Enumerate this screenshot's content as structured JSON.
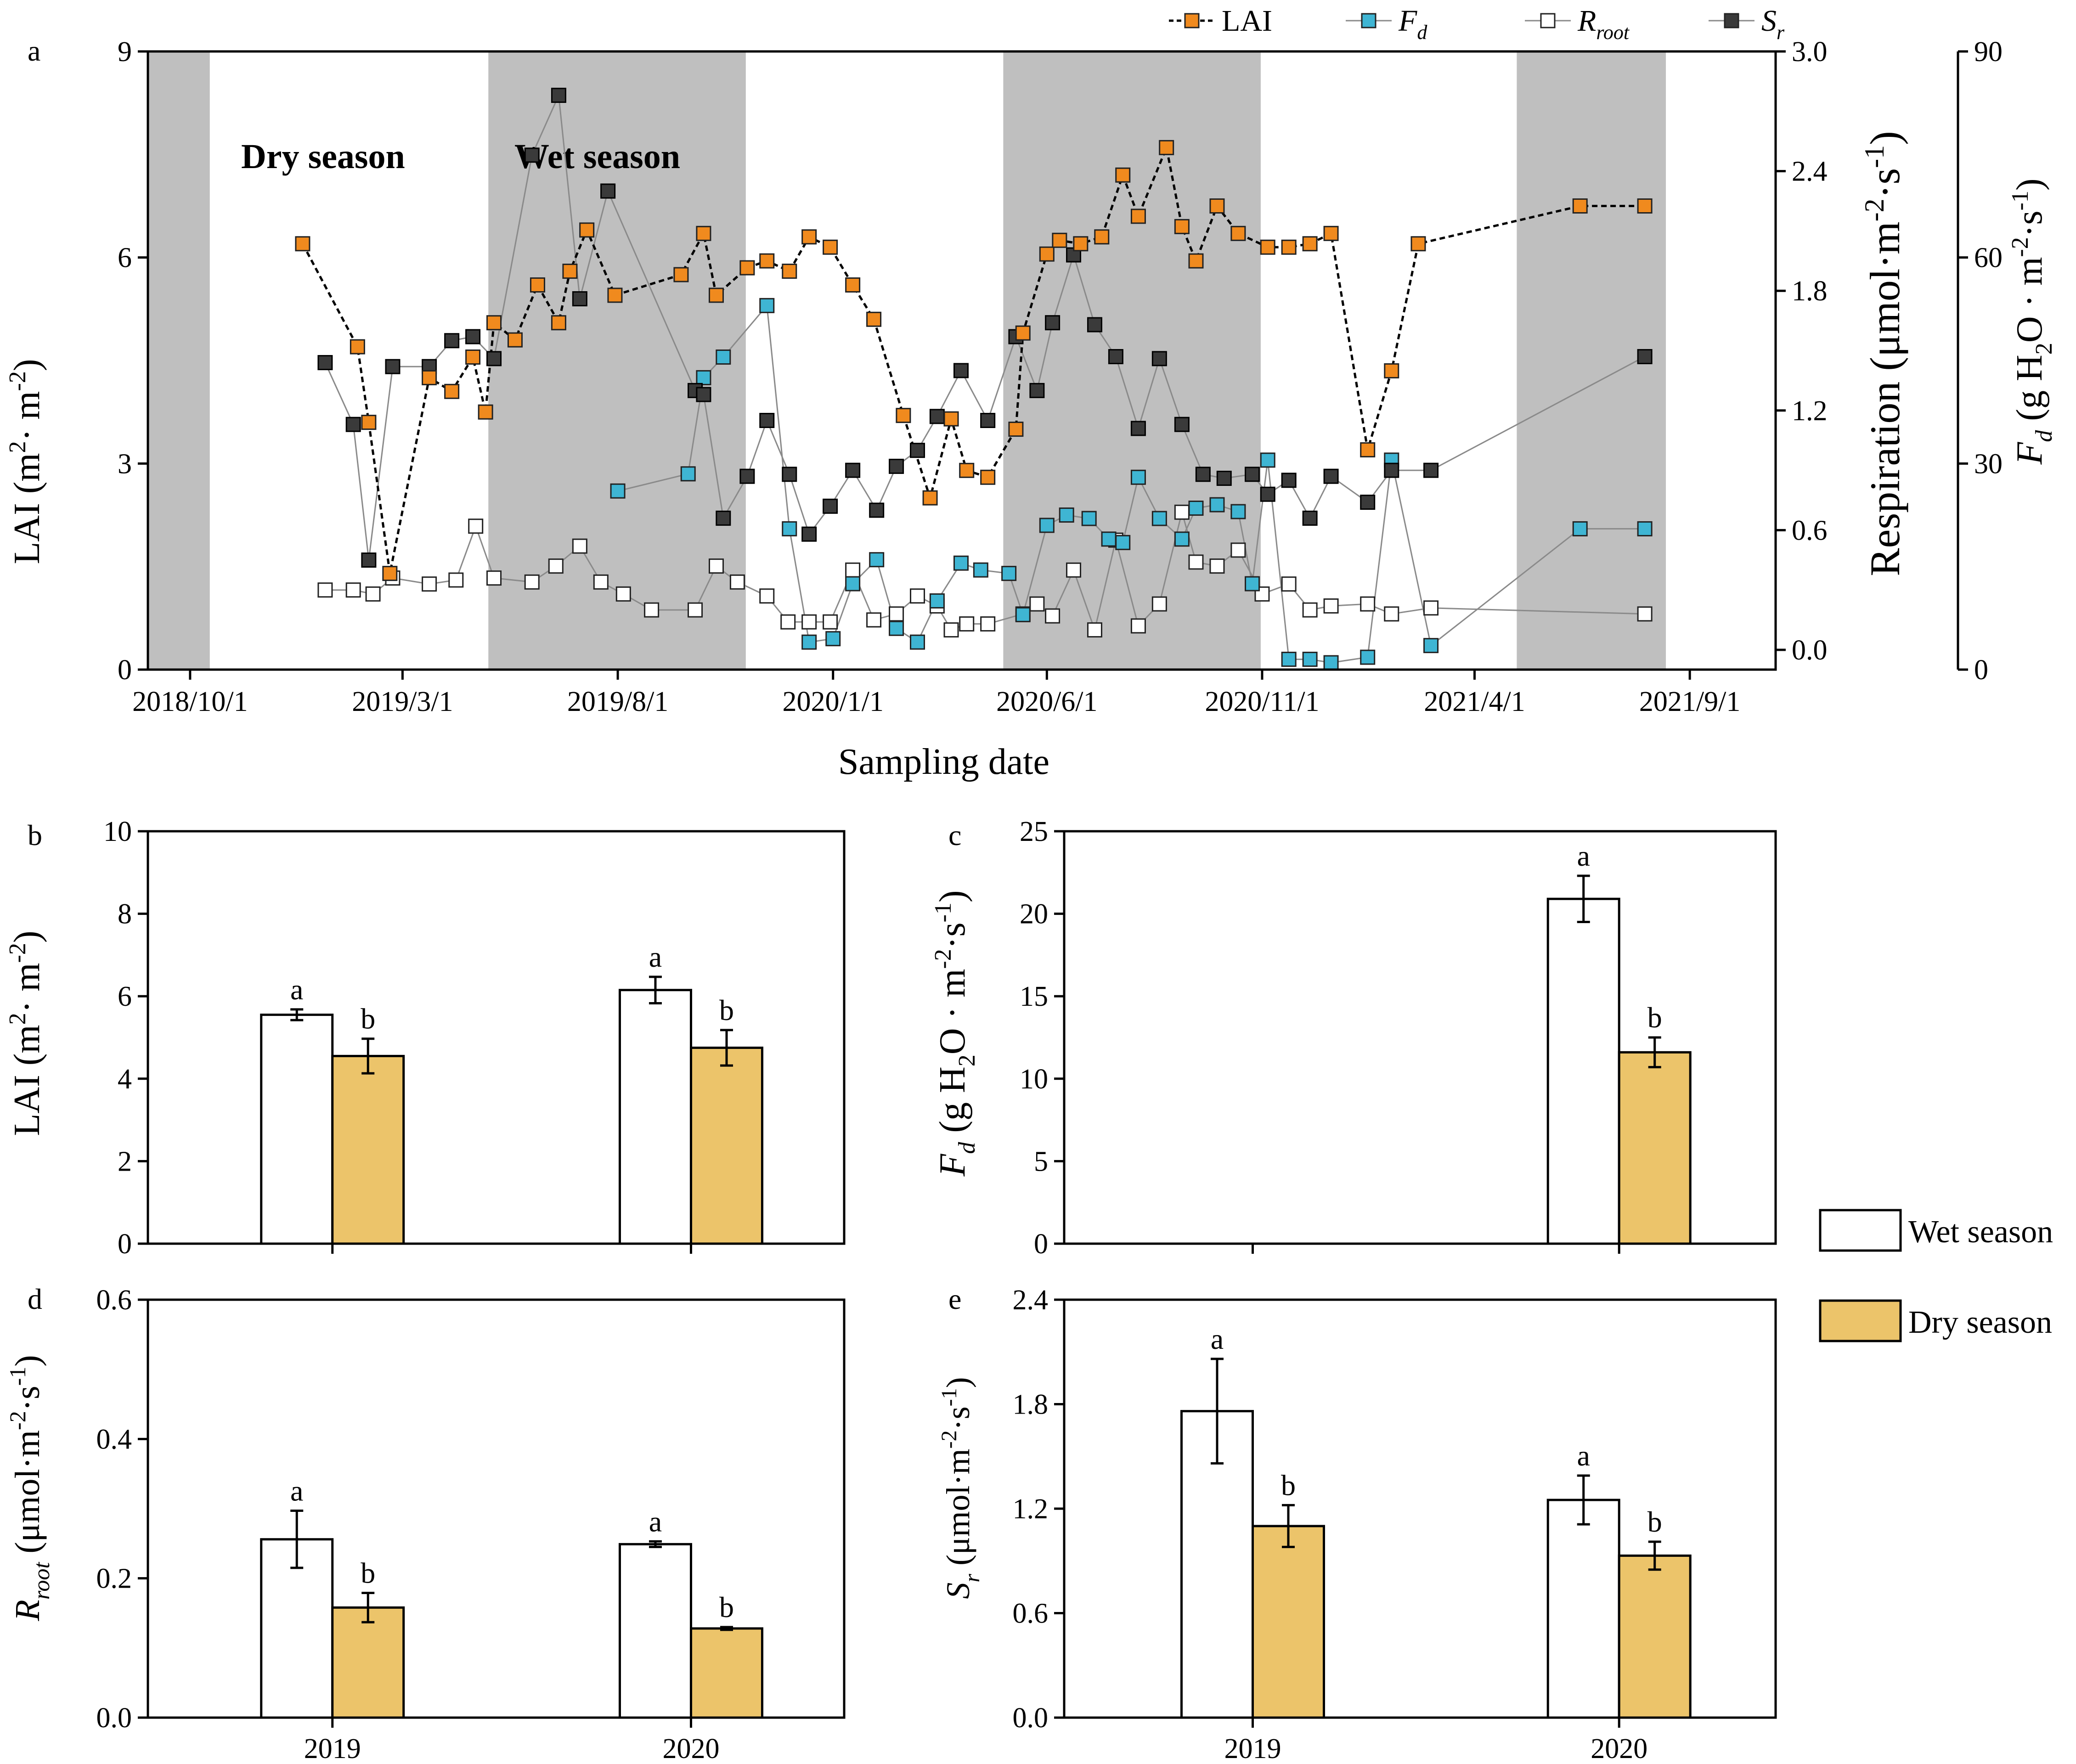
{
  "figure": {
    "panel_labels": [
      "a",
      "b",
      "c",
      "d",
      "e"
    ]
  },
  "colors": {
    "lai": "#f08a1e",
    "fd": "#3fb5d3",
    "rroot": "#ffffff",
    "sr": "#3a3a3a",
    "wet_band": "#bfbfbf",
    "dry_bar": "#ecc46a",
    "wet_bar": "#ffffff"
  },
  "chart_data": [
    {
      "id": "a",
      "type": "line",
      "xlabel": "Sampling date",
      "x_tick_labels": [
        "2018/10/1",
        "2019/3/1",
        "2019/8/1",
        "2020/1/1",
        "2020/6/1",
        "2020/11/1",
        "2021/4/1",
        "2021/9/1"
      ],
      "x_tick_dates": [
        "2018-10-01",
        "2019-03-01",
        "2019-08-01",
        "2020-01-01",
        "2020-06-01",
        "2020-11-01",
        "2021-04-01",
        "2021-09-01"
      ],
      "xlim": [
        "2018-09-01",
        "2021-11-01"
      ],
      "season_bands": [
        {
          "season": "wet",
          "start": "2018-09-01",
          "end": "2018-10-15"
        },
        {
          "season": "wet",
          "start": "2019-05-01",
          "end": "2019-10-31"
        },
        {
          "season": "wet",
          "start": "2020-05-01",
          "end": "2020-10-31"
        },
        {
          "season": "wet",
          "start": "2021-05-01",
          "end": "2021-08-15"
        }
      ],
      "annotations": {
        "dry": "Dry season",
        "wet": "Wet season"
      },
      "axes": {
        "left": {
          "label_main": "LAI (m",
          "label_sup1": "2",
          "label_mid": "· m",
          "label_sup2": "-2",
          "label_end": ")",
          "lim": [
            0,
            9
          ],
          "ticks": [
            "0",
            "3",
            "6",
            "9"
          ]
        },
        "right1": {
          "label_main": "Respiration (μmol·m",
          "label_sup1": "-2",
          "label_mid": "·s",
          "label_sup2": "-1",
          "label_end": ")",
          "lim": [
            0,
            3
          ],
          "ticks": [
            "0.0",
            "0.6",
            "1.2",
            "1.8",
            "2.4",
            "3.0"
          ]
        },
        "right2": {
          "label_main": "F",
          "label_sub": "d",
          "label_rest": " (g H",
          "label_sub2": "2",
          "label_rest2": "O · m",
          "label_sup1": "-2",
          "label_mid": "·s",
          "label_sup2": "-1",
          "label_end": ")",
          "lim": [
            0,
            90
          ],
          "ticks": [
            "0",
            "30",
            "60",
            "90"
          ]
        }
      },
      "legend": [
        {
          "key": "lai",
          "main": "LAI",
          "sub": ""
        },
        {
          "key": "fd",
          "main": "F",
          "sub": "d"
        },
        {
          "key": "rroot",
          "main": "R",
          "sub": "root"
        },
        {
          "key": "sr",
          "main": "S",
          "sub": "r"
        }
      ],
      "series": [
        {
          "key": "lai",
          "name": "LAI",
          "axis": "left",
          "style": "dashed",
          "dates": [
            "2018-12-20",
            "2019-01-28",
            "2019-02-05",
            "2019-02-20",
            "2019-03-20",
            "2019-04-05",
            "2019-04-20",
            "2019-04-29",
            "2019-05-05",
            "2019-05-20",
            "2019-06-05",
            "2019-06-20",
            "2019-06-28",
            "2019-07-10",
            "2019-07-30",
            "2019-09-15",
            "2019-10-01",
            "2019-10-10",
            "2019-11-01",
            "2019-11-15",
            "2019-12-01",
            "2019-12-15",
            "2019-12-30",
            "2020-01-15",
            "2020-01-30",
            "2020-02-20",
            "2020-03-10",
            "2020-03-25",
            "2020-04-05",
            "2020-04-20",
            "2020-05-10",
            "2020-05-15",
            "2020-06-01",
            "2020-06-10",
            "2020-06-25",
            "2020-07-10",
            "2020-07-25",
            "2020-08-05",
            "2020-08-25",
            "2020-09-05",
            "2020-09-15",
            "2020-09-30",
            "2020-10-15",
            "2020-11-05",
            "2020-11-20",
            "2020-12-05",
            "2020-12-20",
            "2021-01-15",
            "2021-02-01",
            "2021-02-20",
            "2021-06-15",
            "2021-07-31"
          ],
          "values": [
            6.2,
            4.7,
            3.6,
            1.4,
            4.25,
            4.05,
            4.55,
            3.75,
            5.05,
            4.8,
            5.6,
            5.05,
            5.8,
            6.4,
            5.45,
            5.75,
            6.35,
            5.45,
            5.85,
            5.95,
            5.8,
            6.3,
            6.15,
            5.6,
            5.1,
            3.7,
            2.5,
            3.65,
            2.9,
            2.8,
            3.5,
            4.9,
            6.05,
            6.25,
            6.2,
            6.3,
            7.2,
            6.6,
            7.6,
            6.45,
            5.95,
            6.75,
            6.35,
            6.15,
            6.15,
            6.2,
            6.35,
            3.2,
            4.35,
            6.2,
            6.75,
            6.75
          ]
        },
        {
          "key": "fd",
          "name": "F_d",
          "axis": "right2",
          "style": "solid",
          "dates": [
            "2019-08-01",
            "2019-09-20",
            "2019-10-01",
            "2019-10-15",
            "2019-11-15",
            "2019-12-01",
            "2019-12-15",
            "2020-01-01",
            "2020-01-15",
            "2020-02-01",
            "2020-02-15",
            "2020-03-01",
            "2020-03-15",
            "2020-04-01",
            "2020-04-15",
            "2020-05-05",
            "2020-05-15",
            "2020-06-01",
            "2020-06-15",
            "2020-07-01",
            "2020-07-15",
            "2020-07-25",
            "2020-08-05",
            "2020-08-20",
            "2020-09-05",
            "2020-09-15",
            "2020-09-30",
            "2020-10-15",
            "2020-10-25",
            "2020-11-05",
            "2020-11-20",
            "2020-12-05",
            "2020-12-20",
            "2021-01-15",
            "2021-02-01",
            "2021-03-01",
            "2021-06-15",
            "2021-07-31"
          ],
          "values": [
            26,
            28.5,
            42.5,
            45.5,
            53,
            20.5,
            4,
            4.5,
            12.5,
            16,
            6,
            4,
            10,
            15.5,
            14.5,
            14,
            8,
            21,
            22.5,
            22,
            19,
            18.5,
            28,
            22,
            19,
            23.5,
            24,
            23,
            12.5,
            30.5,
            1.5,
            1.5,
            1,
            1.8,
            30.5,
            3.5,
            20.5,
            20.5
          ]
        },
        {
          "key": "rroot",
          "name": "R_root",
          "axis": "right1",
          "style": "solid",
          "dates": [
            "2019-01-05",
            "2019-01-25",
            "2019-02-08",
            "2019-02-22",
            "2019-03-20",
            "2019-04-08",
            "2019-04-22",
            "2019-05-05",
            "2019-06-01",
            "2019-06-18",
            "2019-07-05",
            "2019-07-20",
            "2019-08-05",
            "2019-08-25",
            "2019-09-25",
            "2019-10-10",
            "2019-10-25",
            "2019-11-15",
            "2019-11-30",
            "2019-12-15",
            "2019-12-30",
            "2020-01-15",
            "2020-01-30",
            "2020-02-15",
            "2020-03-01",
            "2020-03-15",
            "2020-03-25",
            "2020-04-05",
            "2020-04-20",
            "2020-05-15",
            "2020-05-25",
            "2020-06-05",
            "2020-06-20",
            "2020-07-05",
            "2020-07-20",
            "2020-08-05",
            "2020-08-20",
            "2020-09-05",
            "2020-09-15",
            "2020-09-30",
            "2020-10-15",
            "2020-11-01",
            "2020-11-20",
            "2020-12-05",
            "2020-12-20",
            "2021-01-15",
            "2021-02-01",
            "2021-03-01",
            "2021-07-31"
          ],
          "values": [
            0.3,
            0.3,
            0.28,
            0.36,
            0.33,
            0.35,
            0.62,
            0.36,
            0.34,
            0.42,
            0.52,
            0.34,
            0.28,
            0.2,
            0.2,
            0.42,
            0.34,
            0.27,
            0.14,
            0.14,
            0.14,
            0.4,
            0.15,
            0.18,
            0.27,
            0.22,
            0.1,
            0.13,
            0.13,
            0.18,
            0.23,
            0.17,
            0.4,
            0.1,
            0.55,
            0.12,
            0.23,
            0.69,
            0.44,
            0.42,
            0.5,
            0.28,
            0.33,
            0.2,
            0.22,
            0.23,
            0.18,
            0.21,
            0.18
          ]
        },
        {
          "key": "sr",
          "name": "S_r",
          "axis": "right1",
          "style": "solid",
          "dates": [
            "2019-01-05",
            "2019-01-25",
            "2019-02-05",
            "2019-02-22",
            "2019-03-20",
            "2019-04-05",
            "2019-04-20",
            "2019-05-05",
            "2019-06-01",
            "2019-06-20",
            "2019-07-05",
            "2019-07-25",
            "2019-09-25",
            "2019-10-01",
            "2019-10-15",
            "2019-11-01",
            "2019-11-15",
            "2019-12-01",
            "2019-12-15",
            "2019-12-30",
            "2020-01-15",
            "2020-02-01",
            "2020-02-15",
            "2020-03-01",
            "2020-03-15",
            "2020-04-01",
            "2020-04-20",
            "2020-05-10",
            "2020-05-25",
            "2020-06-05",
            "2020-06-20",
            "2020-07-05",
            "2020-07-20",
            "2020-08-05",
            "2020-08-20",
            "2020-09-05",
            "2020-09-20",
            "2020-10-05",
            "2020-10-25",
            "2020-11-05",
            "2020-11-20",
            "2020-12-05",
            "2020-12-20",
            "2021-01-15",
            "2021-02-01",
            "2021-03-01",
            "2021-07-31"
          ],
          "values": [
            1.44,
            1.13,
            0.45,
            1.42,
            1.42,
            1.55,
            1.57,
            1.46,
            2.48,
            2.78,
            1.76,
            2.3,
            1.3,
            1.28,
            0.66,
            0.87,
            1.15,
            0.88,
            0.58,
            0.72,
            0.9,
            0.7,
            0.92,
            1.0,
            1.17,
            1.4,
            1.15,
            1.57,
            1.3,
            1.64,
            1.98,
            1.63,
            1.47,
            1.11,
            1.46,
            1.13,
            0.88,
            0.86,
            0.88,
            0.78,
            0.85,
            0.66,
            0.87,
            0.74,
            0.9,
            0.9,
            1.47
          ]
        }
      ]
    },
    {
      "id": "b",
      "type": "bar",
      "ylabel_main": "LAI (m",
      "ylabel_sup1": "2",
      "ylabel_mid": "· m",
      "ylabel_sup2": "-2",
      "ylabel_end": ")",
      "ylim": [
        0,
        10
      ],
      "y_ticks": [
        "0",
        "2",
        "4",
        "6",
        "8",
        "10"
      ],
      "categories": [
        "2019",
        "2020"
      ],
      "show_x_labels": false,
      "series": [
        {
          "key": "wet",
          "name": "Wet season",
          "values": [
            5.55,
            6.15
          ],
          "errors": [
            0.13,
            0.32
          ],
          "letters": [
            "a",
            "a"
          ]
        },
        {
          "key": "dry",
          "name": "Dry season",
          "values": [
            4.55,
            4.75
          ],
          "errors": [
            0.42,
            0.43
          ],
          "letters": [
            "b",
            "b"
          ]
        }
      ]
    },
    {
      "id": "c",
      "type": "bar",
      "ylabel_main": "F",
      "ylabel_sub": "d",
      "ylabel_rest": " (g H",
      "ylabel_sub2": "2",
      "ylabel_rest2": "O · m",
      "ylabel_sup1": "-2",
      "ylabel_mid": "·s",
      "ylabel_sup2": "-1",
      "ylabel_end": ")",
      "ylim": [
        0,
        25
      ],
      "y_ticks": [
        "0",
        "5",
        "10",
        "15",
        "20",
        "25"
      ],
      "categories": [
        "2019",
        "2020"
      ],
      "show_x_labels": false,
      "series": [
        {
          "key": "wet",
          "name": "Wet season",
          "values": [
            null,
            20.9
          ],
          "errors": [
            null,
            1.4
          ],
          "letters": [
            "",
            "a"
          ]
        },
        {
          "key": "dry",
          "name": "Dry season",
          "values": [
            null,
            11.6
          ],
          "errors": [
            null,
            0.9
          ],
          "letters": [
            "",
            "b"
          ]
        }
      ]
    },
    {
      "id": "d",
      "type": "bar",
      "ylabel_main": "R",
      "ylabel_sub": "root",
      "ylabel_rest": " (μmol·m",
      "ylabel_sup1": "-2",
      "ylabel_mid": "·s",
      "ylabel_sup2": "-1",
      "ylabel_end": ")",
      "ylim": [
        0,
        0.6
      ],
      "y_ticks": [
        "0.0",
        "0.2",
        "0.4",
        "0.6"
      ],
      "categories": [
        "2019",
        "2020"
      ],
      "show_x_labels": true,
      "series": [
        {
          "key": "wet",
          "name": "Wet season",
          "values": [
            0.256,
            0.249
          ],
          "errors": [
            0.041,
            0.004
          ],
          "letters": [
            "a",
            "a"
          ]
        },
        {
          "key": "dry",
          "name": "Dry season",
          "values": [
            0.158,
            0.128
          ],
          "errors": [
            0.021,
            0.002
          ],
          "letters": [
            "b",
            "b"
          ]
        }
      ]
    },
    {
      "id": "e",
      "type": "bar",
      "ylabel_main": "S",
      "ylabel_sub": "r",
      "ylabel_rest": " (μmol·m",
      "ylabel_sup1": "-2",
      "ylabel_mid": "·s",
      "ylabel_sup2": "-1",
      "ylabel_end": ")",
      "ylim": [
        0,
        2.4
      ],
      "y_ticks": [
        "0.0",
        "0.6",
        "1.2",
        "1.8",
        "2.4"
      ],
      "categories": [
        "2019",
        "2020"
      ],
      "show_x_labels": true,
      "series": [
        {
          "key": "wet",
          "name": "Wet season",
          "values": [
            1.76,
            1.25
          ],
          "errors": [
            0.3,
            0.14
          ],
          "letters": [
            "a",
            "a"
          ]
        },
        {
          "key": "dry",
          "name": "Dry season",
          "values": [
            1.1,
            0.93
          ],
          "errors": [
            0.12,
            0.08
          ],
          "letters": [
            "b",
            "b"
          ]
        }
      ]
    }
  ],
  "bar_legend": [
    {
      "key": "wet",
      "label": "Wet season"
    },
    {
      "key": "dry",
      "label": "Dry season"
    }
  ]
}
